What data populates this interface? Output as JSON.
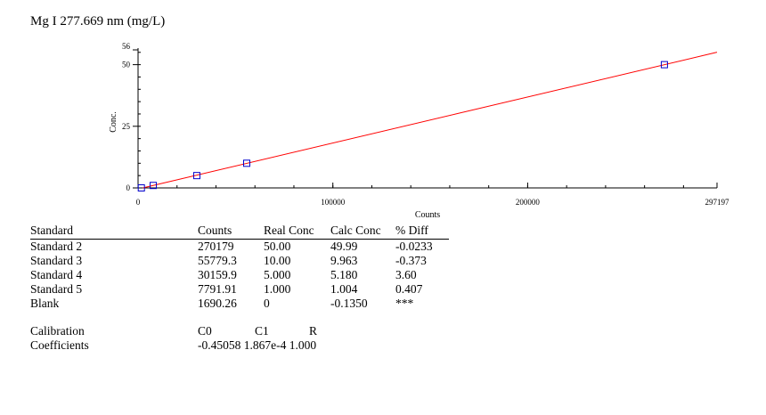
{
  "title": "Mg I 277.669 nm (mg/L)",
  "chart_data": {
    "type": "scatter",
    "xlabel": "Counts",
    "ylabel": "Conc.",
    "xlim": [
      0,
      297197
    ],
    "ylim": [
      0,
      56
    ],
    "x_ticks": [
      "0",
      "100000",
      "200000",
      "297197"
    ],
    "y_ticks": [
      "0",
      "25",
      "50",
      "56"
    ],
    "x_tick_values": [
      0,
      100000,
      200000,
      297197
    ],
    "y_tick_values": [
      0,
      25,
      50,
      56
    ],
    "points": [
      {
        "x": 270179,
        "y": 50.0
      },
      {
        "x": 55779.3,
        "y": 10.0
      },
      {
        "x": 30159.9,
        "y": 5.0
      },
      {
        "x": 7791.91,
        "y": 1.0
      },
      {
        "x": 1690.26,
        "y": 0
      }
    ],
    "fit_line": {
      "intercept": -0.45058,
      "slope": 0.0001867
    },
    "colors": {
      "line": "#ff0000",
      "marker": "#0000cc"
    }
  },
  "table": {
    "headers": [
      "Standard",
      "Counts",
      "Real Conc",
      "Calc Conc",
      "% Diff"
    ],
    "rows": [
      [
        "Standard 2",
        "270179",
        "50.00",
        "49.99",
        "-0.0233"
      ],
      [
        "Standard 3",
        "55779.3",
        "10.00",
        "9.963",
        "-0.373"
      ],
      [
        "Standard 4",
        "30159.9",
        "5.000",
        "5.180",
        "3.60"
      ],
      [
        "Standard 5",
        "7791.91",
        "1.000",
        "1.004",
        "0.407"
      ],
      [
        "Blank",
        "1690.26",
        "0",
        "-0.1350",
        "***"
      ]
    ]
  },
  "calibration": {
    "label1": "Calibration",
    "label2": "Coefficients",
    "headers": [
      "C0",
      "C1",
      "R"
    ],
    "values": "-0.45058 1.867e-4 1.000"
  }
}
